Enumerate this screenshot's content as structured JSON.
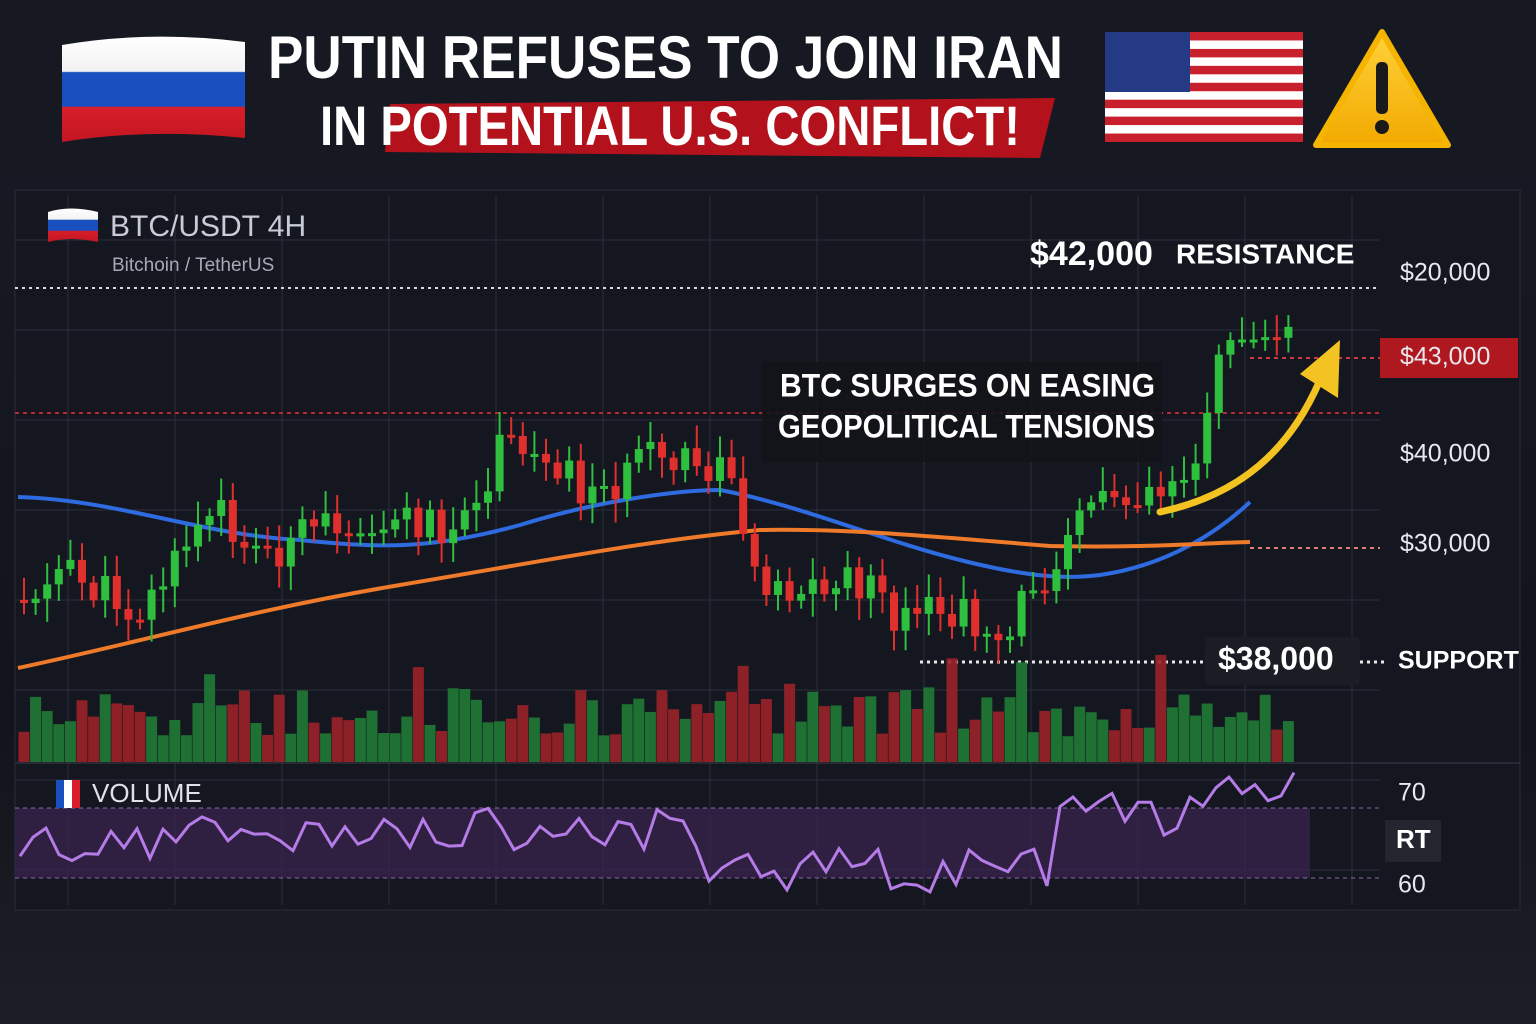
{
  "header": {
    "title_line1": "PUTIN REFUSES TO JOIN IRAN",
    "title_line2": "IN POTENTIAL U.S. CONFLICT!"
  },
  "chart_panel": {
    "symbol": "BTC/USDT 4H",
    "pair_name": "Bitchoin / TetherUS",
    "resistance": {
      "price": "$42,000",
      "label": "RESISTANCE"
    },
    "annotation": [
      "BTC SURGES ON EASING",
      "GEOPOLITICAL TENSIONS"
    ],
    "support": {
      "price": "$38,000",
      "label": "SUPPORT"
    },
    "price_axis": [
      "$20,000",
      "$43,000",
      "$40,000",
      "$30,000"
    ],
    "volume_label": "VOLUME",
    "indicator_axis": [
      "70",
      "RT",
      "60"
    ]
  }
}
